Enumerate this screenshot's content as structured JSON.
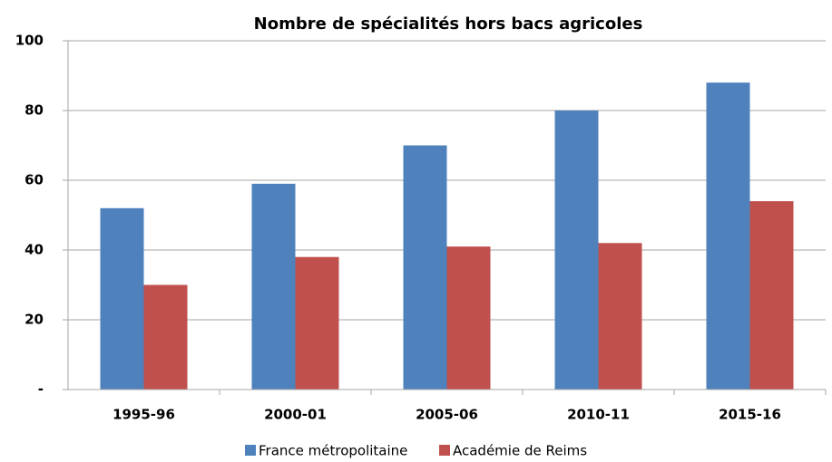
{
  "chart_data": {
    "type": "bar",
    "title": "Nombre de spécialités hors bacs agricoles",
    "categories": [
      "1995-96",
      "2000-01",
      "2005-06",
      "2010-11",
      "2015-16"
    ],
    "series": [
      {
        "name": "France métropolitaine",
        "color": "#4f81bd",
        "values": [
          52,
          59,
          70,
          80,
          88
        ]
      },
      {
        "name": "Académie de Reims",
        "color": "#c0504d",
        "values": [
          30,
          38,
          41,
          42,
          54
        ]
      }
    ],
    "ylim": [
      0,
      100
    ],
    "yticks": [
      {
        "value": 0,
        "label": "-"
      },
      20,
      40,
      60,
      80,
      100
    ],
    "grid": true,
    "legend": "bottom"
  }
}
